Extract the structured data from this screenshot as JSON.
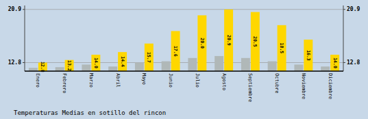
{
  "chart_data": {
    "type": "bar",
    "title": "Temperaturas Medias en sotillo del rincon",
    "categories": [
      "Enero",
      "Febrero",
      "Marzo",
      "Abril",
      "Mayo",
      "Junio",
      "Julio",
      "Agosto",
      "Septiembre",
      "Octubre",
      "Noviembre",
      "Diciembre"
    ],
    "series": [
      {
        "color": "#B0B8B8",
        "values": [
          12.0,
          12.1,
          12.5,
          12.2,
          12.8,
          13.0,
          13.5,
          13.8,
          13.5,
          13.0,
          12.5,
          12.2
        ]
      },
      {
        "color": "#FFD700",
        "values": [
          12.8,
          13.2,
          14.0,
          14.4,
          15.7,
          17.6,
          20.0,
          20.9,
          20.5,
          18.5,
          16.3,
          14.0
        ],
        "value_labels": [
          "12.8",
          "13.2",
          "14.0",
          "14.4",
          "15.7",
          "17.6",
          "20.0",
          "20.9",
          "20.5",
          "18.5",
          "16.3",
          "14.0"
        ],
        "data_labels": true
      }
    ],
    "ylim": [
      11.5,
      21.5
    ],
    "yticks": [
      12.8,
      20.9
    ],
    "y2lim": [
      11.5,
      21.5
    ],
    "y2ticks": [
      12.8,
      20.9
    ],
    "grid": true
  }
}
